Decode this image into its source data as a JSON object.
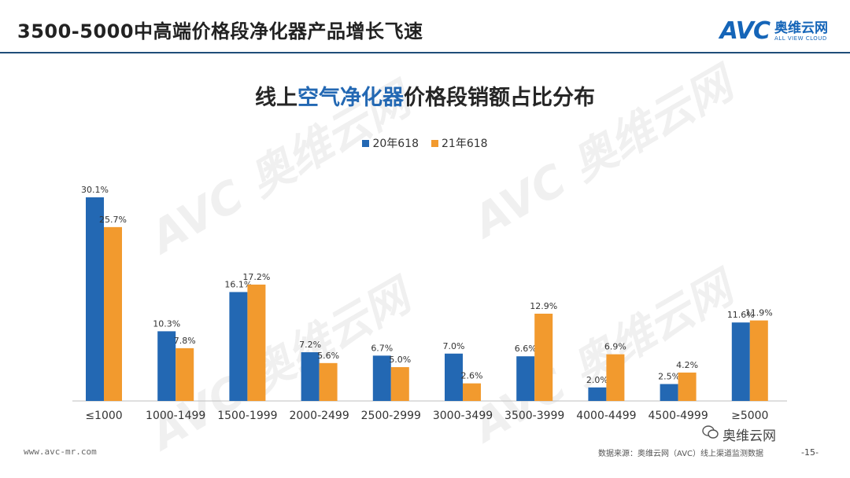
{
  "header": {
    "title": "3500-5000中高端价格段净化器产品增长飞速",
    "logo_mark": "AVC",
    "logo_cn": "奥维云网",
    "logo_en": "ALL VIEW CLOUD"
  },
  "chart_title": {
    "prefix": "线上",
    "highlight": "空气净化器",
    "suffix": "价格段销额占比分布"
  },
  "colors": {
    "series1": "#2368b3",
    "series2": "#f29a2e"
  },
  "chart_data": {
    "type": "bar",
    "categories": [
      "≤1000",
      "1000-1499",
      "1500-1999",
      "2000-2499",
      "2500-2999",
      "3000-3499",
      "3500-3999",
      "4000-4499",
      "4500-4999",
      "≥5000"
    ],
    "series": [
      {
        "name": "20年618",
        "values": [
          30.1,
          10.3,
          16.1,
          7.2,
          6.7,
          7.0,
          6.6,
          2.0,
          2.5,
          11.6
        ],
        "labels": [
          "30.1%",
          "10.3%",
          "16.1%",
          "7.2%",
          "6.7%",
          "7.0%",
          "6.6%",
          "2.0%",
          "2.5%",
          "11.6%"
        ]
      },
      {
        "name": "21年618",
        "values": [
          25.7,
          7.8,
          17.2,
          5.6,
          5.0,
          2.6,
          12.9,
          6.9,
          4.2,
          11.9
        ],
        "labels": [
          "25.7%",
          "7.8%",
          "17.2%",
          "5.6%",
          "5.0%",
          "2.6%",
          "12.9%",
          "6.9%",
          "4.2%",
          "11.9%"
        ]
      }
    ],
    "title": "线上空气净化器价格段销额占比分布",
    "ylim": [
      0,
      30.1
    ],
    "legend": "top-center"
  },
  "footer": {
    "url": "www.avc-mr.com",
    "source": "数据来源：奥维云网（AVC）线上渠道监测数据",
    "page": "-15-",
    "wechat": "奥维云网"
  },
  "watermark": "AVC 奥维云网"
}
